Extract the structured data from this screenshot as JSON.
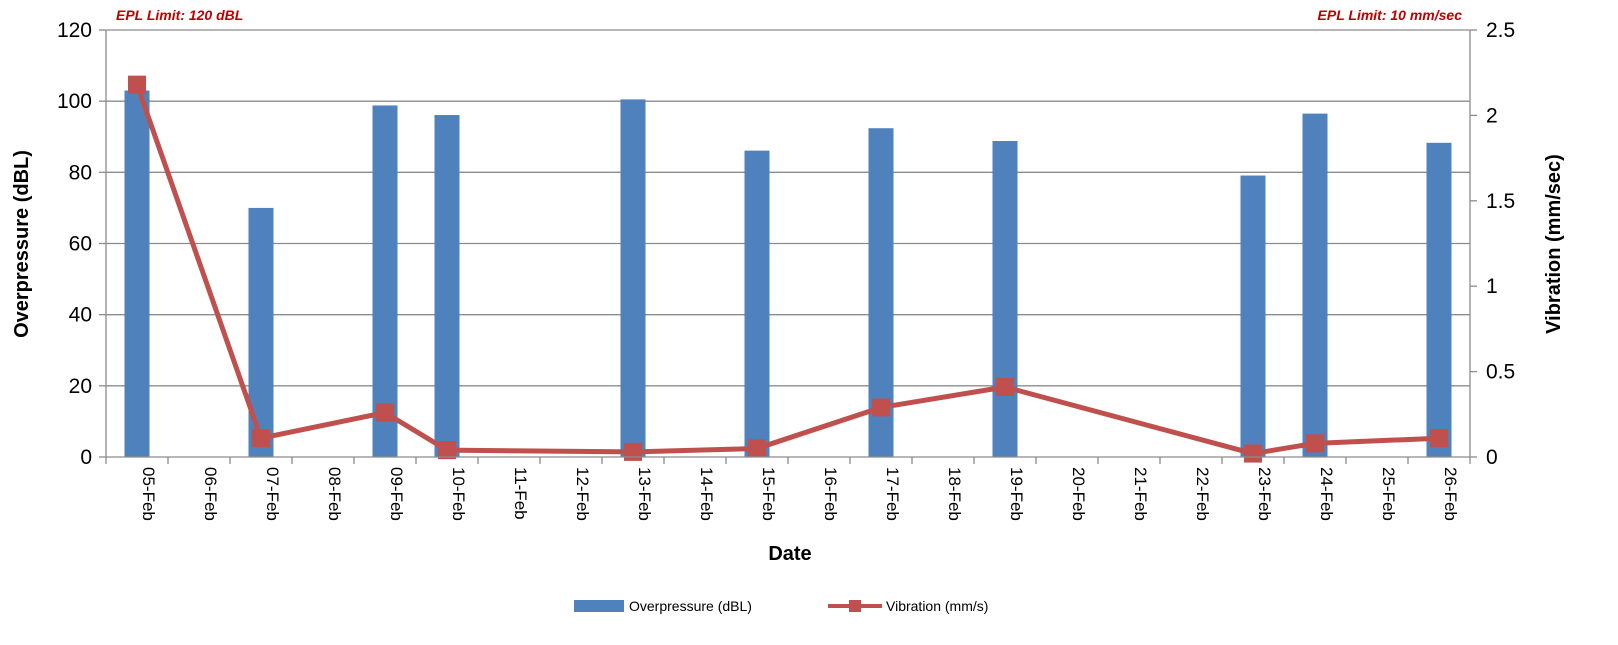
{
  "chart_data": {
    "type": "bar",
    "categories": [
      "05-Feb",
      "06-Feb",
      "07-Feb",
      "08-Feb",
      "09-Feb",
      "10-Feb",
      "11-Feb",
      "12-Feb",
      "13-Feb",
      "14-Feb",
      "15-Feb",
      "16-Feb",
      "17-Feb",
      "18-Feb",
      "19-Feb",
      "20-Feb",
      "21-Feb",
      "22-Feb",
      "23-Feb",
      "24-Feb",
      "25-Feb",
      "26-Feb"
    ],
    "series": [
      {
        "name": "Overpressure (dBL)",
        "type": "bar",
        "axis": "left",
        "color": "#4f81bd",
        "values": [
          103,
          null,
          70,
          null,
          98.8,
          96.1,
          null,
          null,
          100.5,
          null,
          86.1,
          null,
          92.4,
          null,
          88.8,
          null,
          null,
          null,
          79.1,
          96.5,
          null,
          88.3
        ]
      },
      {
        "name": "Vibration (mm/s)",
        "type": "line",
        "axis": "right",
        "color": "#c0504d",
        "points": [
          {
            "x": "05-Feb",
            "y": 2.18
          },
          {
            "x": "07-Feb",
            "y": 0.11
          },
          {
            "x": "09-Feb",
            "y": 0.26
          },
          {
            "x": "10-Feb",
            "y": 0.04
          },
          {
            "x": "13-Feb",
            "y": 0.03
          },
          {
            "x": "15-Feb",
            "y": 0.05
          },
          {
            "x": "17-Feb",
            "y": 0.29
          },
          {
            "x": "19-Feb",
            "y": 0.41
          },
          {
            "x": "23-Feb",
            "y": 0.02
          },
          {
            "x": "24-Feb",
            "y": 0.08
          },
          {
            "x": "26-Feb",
            "y": 0.11
          }
        ]
      }
    ],
    "xlabel": "Date",
    "ylabel": "Overpressure (dBL)",
    "y2label": "Vibration (mm/sec)",
    "ylim": [
      0,
      120
    ],
    "yticks": [
      0,
      20,
      40,
      60,
      80,
      100,
      120
    ],
    "y2lim": [
      0,
      2.5
    ],
    "y2ticks": [
      "0",
      "0.5",
      "1",
      "1.5",
      "2",
      "2.5"
    ],
    "grid": true,
    "legend_position": "bottom",
    "annotations": {
      "left": {
        "bold_italic": "EPL Limit",
        "rest": ": 120 dBL"
      },
      "right": "EPL Limit: 10 mm/sec"
    }
  }
}
